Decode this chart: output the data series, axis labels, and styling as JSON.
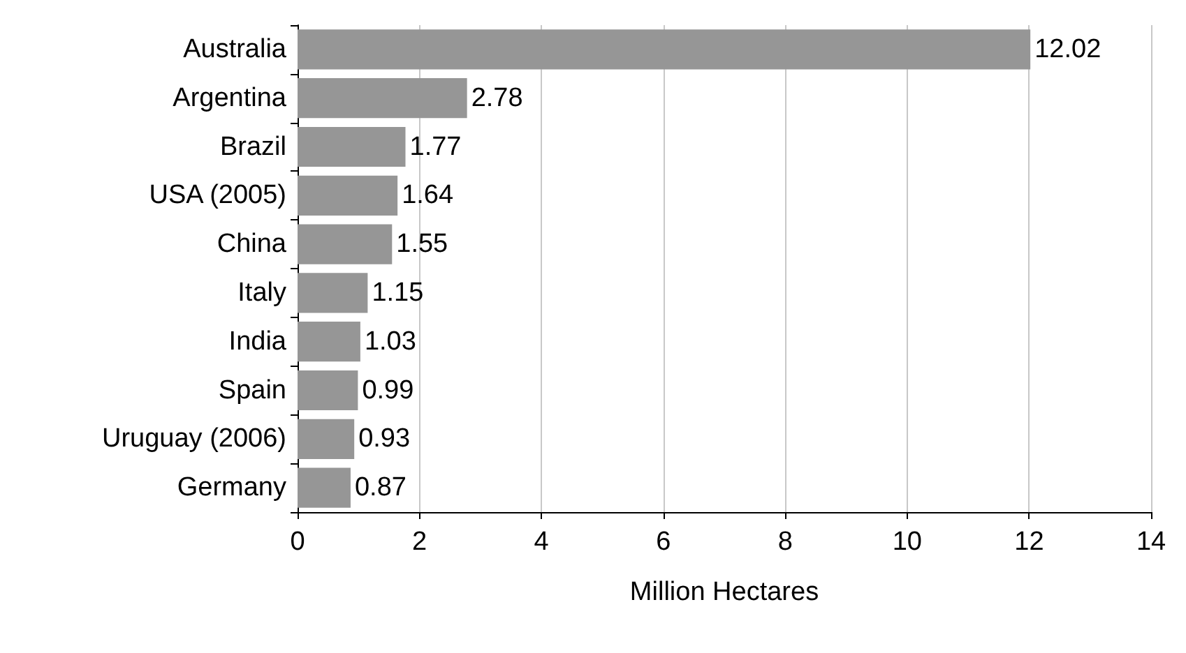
{
  "chart_data": {
    "type": "bar",
    "orientation": "horizontal",
    "xlabel": "Million Hectares",
    "categories": [
      "Australia",
      "Argentina",
      "Brazil",
      "USA (2005)",
      "China",
      "Italy",
      "India",
      "Spain",
      "Uruguay (2006)",
      "Germany"
    ],
    "values": [
      12.02,
      2.78,
      1.77,
      1.64,
      1.55,
      1.15,
      1.03,
      0.99,
      0.93,
      0.87
    ],
    "color": "#969696",
    "xlim": [
      0,
      14
    ],
    "xticks": [
      0,
      2,
      4,
      6,
      8,
      10,
      12,
      14
    ],
    "grid": "x",
    "data_labels": true
  }
}
